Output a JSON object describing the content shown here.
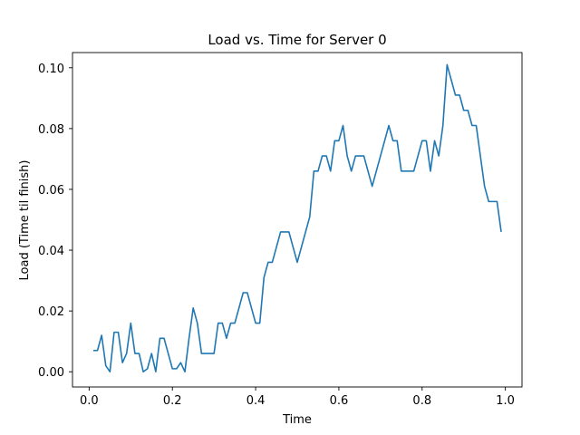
{
  "chart_data": {
    "type": "line",
    "title": "Load vs. Time for Server 0",
    "xlabel": "Time",
    "ylabel": "Load (Time til finish)",
    "xlim": [
      -0.04,
      1.04
    ],
    "ylim": [
      -0.005,
      0.105
    ],
    "xticks": [
      0.0,
      0.2,
      0.4,
      0.6,
      0.8,
      1.0
    ],
    "xtick_labels": [
      "0.0",
      "0.2",
      "0.4",
      "0.6",
      "0.8",
      "1.0"
    ],
    "yticks": [
      0.0,
      0.02,
      0.04,
      0.06,
      0.08,
      0.1
    ],
    "ytick_labels": [
      "0.00",
      "0.02",
      "0.04",
      "0.06",
      "0.08",
      "0.10"
    ],
    "grid": false,
    "line_color": "#1f77b4",
    "series": [
      {
        "x": [
          0.01,
          0.02,
          0.03,
          0.04,
          0.05,
          0.06,
          0.07,
          0.08,
          0.09,
          0.1,
          0.11,
          0.12,
          0.13,
          0.14,
          0.15,
          0.16,
          0.17,
          0.18,
          0.19,
          0.2,
          0.21,
          0.22,
          0.23,
          0.24,
          0.25,
          0.26,
          0.27,
          0.28,
          0.29,
          0.3,
          0.31,
          0.32,
          0.33,
          0.34,
          0.35,
          0.36,
          0.37,
          0.38,
          0.39,
          0.4,
          0.41,
          0.42,
          0.43,
          0.44,
          0.45,
          0.46,
          0.47,
          0.48,
          0.49,
          0.5,
          0.51,
          0.52,
          0.53,
          0.54,
          0.55,
          0.56,
          0.57,
          0.58,
          0.59,
          0.6,
          0.61,
          0.62,
          0.63,
          0.64,
          0.65,
          0.66,
          0.67,
          0.68,
          0.69,
          0.7,
          0.71,
          0.72,
          0.73,
          0.74,
          0.75,
          0.76,
          0.77,
          0.78,
          0.79,
          0.8,
          0.81,
          0.82,
          0.83,
          0.84,
          0.85,
          0.86,
          0.87,
          0.88,
          0.89,
          0.9,
          0.91,
          0.92,
          0.93,
          0.94,
          0.95,
          0.96,
          0.97,
          0.98,
          0.99
        ],
        "values": [
          0.007,
          0.007,
          0.012,
          0.002,
          0.0,
          0.013,
          0.013,
          0.003,
          0.006,
          0.016,
          0.006,
          0.006,
          0.0,
          0.001,
          0.006,
          0.0,
          0.011,
          0.011,
          0.006,
          0.001,
          0.001,
          0.003,
          0.0,
          0.011,
          0.021,
          0.016,
          0.006,
          0.006,
          0.006,
          0.006,
          0.016,
          0.016,
          0.011,
          0.016,
          0.016,
          0.021,
          0.026,
          0.026,
          0.021,
          0.016,
          0.016,
          0.031,
          0.036,
          0.036,
          0.041,
          0.046,
          0.046,
          0.046,
          0.041,
          0.036,
          0.041,
          0.046,
          0.051,
          0.066,
          0.066,
          0.071,
          0.071,
          0.066,
          0.076,
          0.076,
          0.081,
          0.071,
          0.066,
          0.071,
          0.071,
          0.071,
          0.066,
          0.061,
          0.066,
          0.071,
          0.076,
          0.081,
          0.076,
          0.076,
          0.066,
          0.066,
          0.066,
          0.066,
          0.071,
          0.076,
          0.076,
          0.066,
          0.076,
          0.071,
          0.081,
          0.101,
          0.096,
          0.091,
          0.091,
          0.086,
          0.086,
          0.081,
          0.081,
          0.071,
          0.061,
          0.056,
          0.056,
          0.056,
          0.046
        ]
      }
    ]
  }
}
